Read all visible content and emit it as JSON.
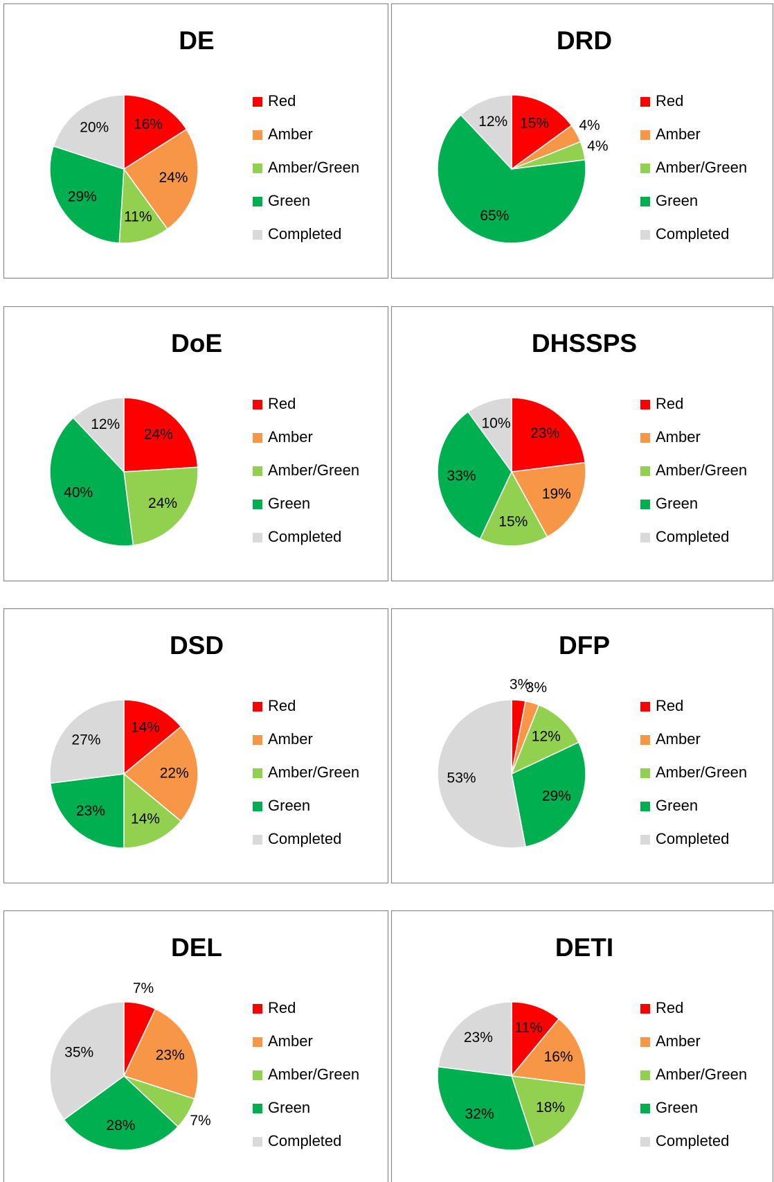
{
  "chart_data": [
    {
      "type": "pie",
      "title": "DE",
      "categories": [
        "Red",
        "Amber",
        "Amber/Green",
        "Green",
        "Completed"
      ],
      "values": [
        16,
        24,
        11,
        29,
        20
      ],
      "value_labels": [
        "16%",
        "24%",
        "11%",
        "29%",
        "20%"
      ],
      "colors": [
        "#ff0000",
        "#f79646",
        "#92d050",
        "#00b050",
        "#d9d9d9"
      ],
      "legend": "right"
    },
    {
      "type": "pie",
      "title": "DRD",
      "categories": [
        "Red",
        "Amber",
        "Amber/Green",
        "Green",
        "Completed"
      ],
      "values": [
        15,
        4,
        4,
        65,
        12
      ],
      "value_labels": [
        "15%",
        "4%",
        "4%",
        "65%",
        "12%"
      ],
      "colors": [
        "#ff0000",
        "#f79646",
        "#92d050",
        "#00b050",
        "#d9d9d9"
      ],
      "legend": "right"
    },
    {
      "type": "pie",
      "title": "DoE",
      "categories": [
        "Red",
        "Amber",
        "Amber/Green",
        "Green",
        "Completed"
      ],
      "values": [
        24,
        0,
        24,
        40,
        12
      ],
      "value_labels": [
        "24%",
        null,
        "24%",
        "40%",
        "12%"
      ],
      "colors": [
        "#ff0000",
        "#f79646",
        "#92d050",
        "#00b050",
        "#d9d9d9"
      ],
      "legend": "right"
    },
    {
      "type": "pie",
      "title": "DHSSPS",
      "categories": [
        "Red",
        "Amber",
        "Amber/Green",
        "Green",
        "Completed"
      ],
      "values": [
        23,
        19,
        15,
        33,
        10
      ],
      "value_labels": [
        "23%",
        "19%",
        "15%",
        "33%",
        "10%"
      ],
      "colors": [
        "#ff0000",
        "#f79646",
        "#92d050",
        "#00b050",
        "#d9d9d9"
      ],
      "legend": "right"
    },
    {
      "type": "pie",
      "title": "DSD",
      "categories": [
        "Red",
        "Amber",
        "Amber/Green",
        "Green",
        "Completed"
      ],
      "values": [
        14,
        22,
        14,
        23,
        27
      ],
      "value_labels": [
        "14%",
        "22%",
        "14%",
        "23%",
        "27%"
      ],
      "colors": [
        "#ff0000",
        "#f79646",
        "#92d050",
        "#00b050",
        "#d9d9d9"
      ],
      "legend": "right"
    },
    {
      "type": "pie",
      "title": "DFP",
      "categories": [
        "Red",
        "Amber",
        "Amber/Green",
        "Green",
        "Completed"
      ],
      "values": [
        3,
        3,
        12,
        29,
        53
      ],
      "value_labels": [
        "3%",
        "3%",
        "12%",
        "29%",
        "53%"
      ],
      "colors": [
        "#ff0000",
        "#f79646",
        "#92d050",
        "#00b050",
        "#d9d9d9"
      ],
      "legend": "right"
    },
    {
      "type": "pie",
      "title": "DEL",
      "categories": [
        "Red",
        "Amber",
        "Amber/Green",
        "Green",
        "Completed"
      ],
      "values": [
        7,
        23,
        7,
        28,
        35
      ],
      "value_labels": [
        "7%",
        "23%",
        "7%",
        "28%",
        "35%"
      ],
      "colors": [
        "#ff0000",
        "#f79646",
        "#92d050",
        "#00b050",
        "#d9d9d9"
      ],
      "legend": "right"
    },
    {
      "type": "pie",
      "title": "DETI",
      "categories": [
        "Red",
        "Amber",
        "Amber/Green",
        "Green",
        "Completed"
      ],
      "values": [
        11,
        16,
        18,
        32,
        23
      ],
      "value_labels": [
        "11%",
        "16%",
        "18%",
        "32%",
        "23%"
      ],
      "colors": [
        "#ff0000",
        "#f79646",
        "#92d050",
        "#00b050",
        "#d9d9d9"
      ],
      "legend": "right"
    }
  ]
}
